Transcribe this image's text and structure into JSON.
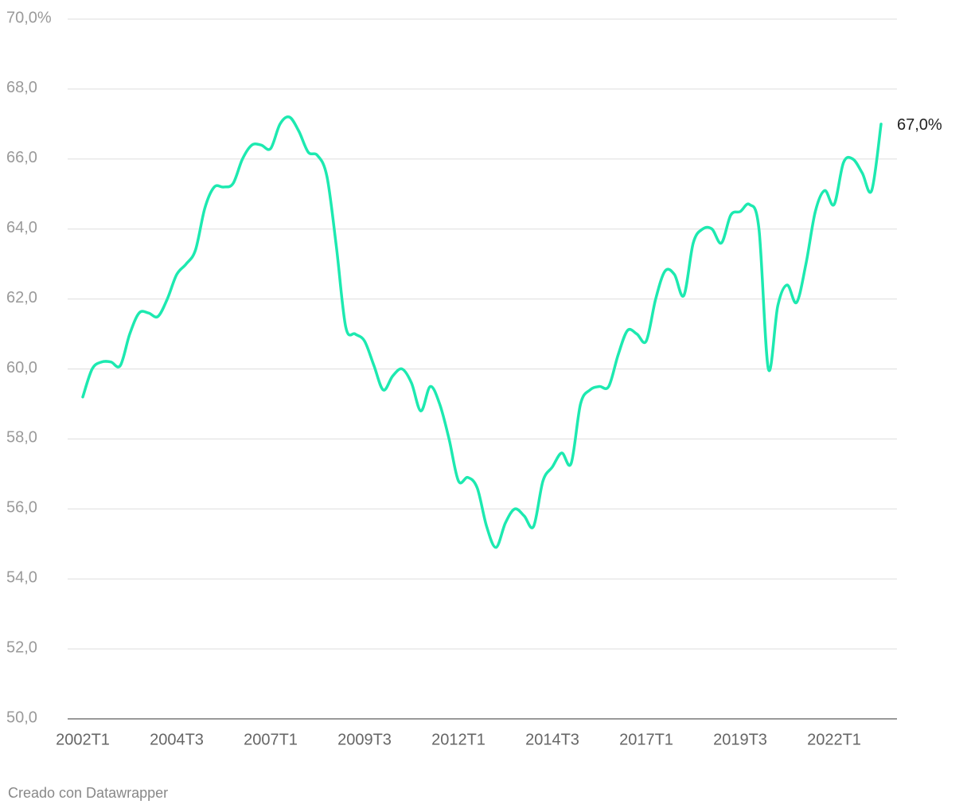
{
  "chart_data": {
    "type": "line",
    "categories": [
      "2002T1",
      null,
      null,
      null,
      null,
      null,
      null,
      null,
      null,
      null,
      "2004T3",
      null,
      null,
      null,
      null,
      null,
      null,
      null,
      null,
      null,
      "2007T1",
      null,
      null,
      null,
      null,
      null,
      null,
      null,
      null,
      null,
      "2009T3",
      null,
      null,
      null,
      null,
      null,
      null,
      null,
      null,
      null,
      "2012T1",
      null,
      null,
      null,
      null,
      null,
      null,
      null,
      null,
      null,
      "2014T3",
      null,
      null,
      null,
      null,
      null,
      null,
      null,
      null,
      null,
      "2017T1",
      null,
      null,
      null,
      null,
      null,
      null,
      null,
      null,
      null,
      "2019T3",
      null,
      null,
      null,
      null,
      null,
      null,
      null,
      null,
      null,
      "2022T1",
      null,
      null,
      null,
      null,
      null
    ],
    "values": [
      59.2,
      60.0,
      60.2,
      60.2,
      60.1,
      61.0,
      61.6,
      61.6,
      61.5,
      62.0,
      62.7,
      63.0,
      63.4,
      64.6,
      65.2,
      65.2,
      65.3,
      66.0,
      66.4,
      66.4,
      66.3,
      67.0,
      67.2,
      66.8,
      66.2,
      66.1,
      65.5,
      63.5,
      61.2,
      61.0,
      60.8,
      60.1,
      59.4,
      59.8,
      60.0,
      59.6,
      58.8,
      59.5,
      59.0,
      58.0,
      56.8,
      56.9,
      56.6,
      55.5,
      54.9,
      55.6,
      56.0,
      55.8,
      55.5,
      56.8,
      57.2,
      57.6,
      57.3,
      59.0,
      59.4,
      59.5,
      59.5,
      60.4,
      61.1,
      61.0,
      60.8,
      62.0,
      62.8,
      62.7,
      62.1,
      63.6,
      64.0,
      64.0,
      63.6,
      64.4,
      64.5,
      64.7,
      64.0,
      60.0,
      61.8,
      62.4,
      61.9,
      63.0,
      64.5,
      65.1,
      64.7,
      65.9,
      66.0,
      65.6,
      65.1,
      67.0
    ],
    "value_labels": [
      null,
      null,
      null,
      null,
      null,
      null,
      null,
      null,
      null,
      null,
      null,
      null,
      null,
      null,
      null,
      null,
      null,
      null,
      null,
      null,
      null,
      null,
      null,
      null,
      null,
      null,
      null,
      null,
      null,
      null,
      null,
      null,
      null,
      null,
      null,
      null,
      null,
      null,
      null,
      null,
      null,
      null,
      null,
      null,
      null,
      null,
      null,
      null,
      null,
      null,
      null,
      null,
      null,
      null,
      null,
      null,
      null,
      null,
      null,
      null,
      null,
      null,
      null,
      null,
      null,
      null,
      null,
      null,
      null,
      null,
      null,
      null,
      null,
      null,
      null,
      null,
      null,
      null,
      null,
      null,
      null,
      null,
      null,
      null,
      null,
      "67,0%"
    ],
    "color": "#1de9b0",
    "ylim": [
      50,
      70
    ],
    "yticks": [
      {
        "value": 50,
        "label": "50,0"
      },
      {
        "value": 52,
        "label": "52,0"
      },
      {
        "value": 54,
        "label": "54,0"
      },
      {
        "value": 56,
        "label": "56,0"
      },
      {
        "value": 58,
        "label": "58,0"
      },
      {
        "value": 60,
        "label": "60,0"
      },
      {
        "value": 62,
        "label": "62,0"
      },
      {
        "value": 64,
        "label": "64,0"
      },
      {
        "value": 66,
        "label": "66,0"
      },
      {
        "value": 68,
        "label": "68,0"
      },
      {
        "value": 70,
        "label": "70,0%"
      }
    ],
    "grid": true,
    "credit": "Creado con Datawrapper"
  }
}
